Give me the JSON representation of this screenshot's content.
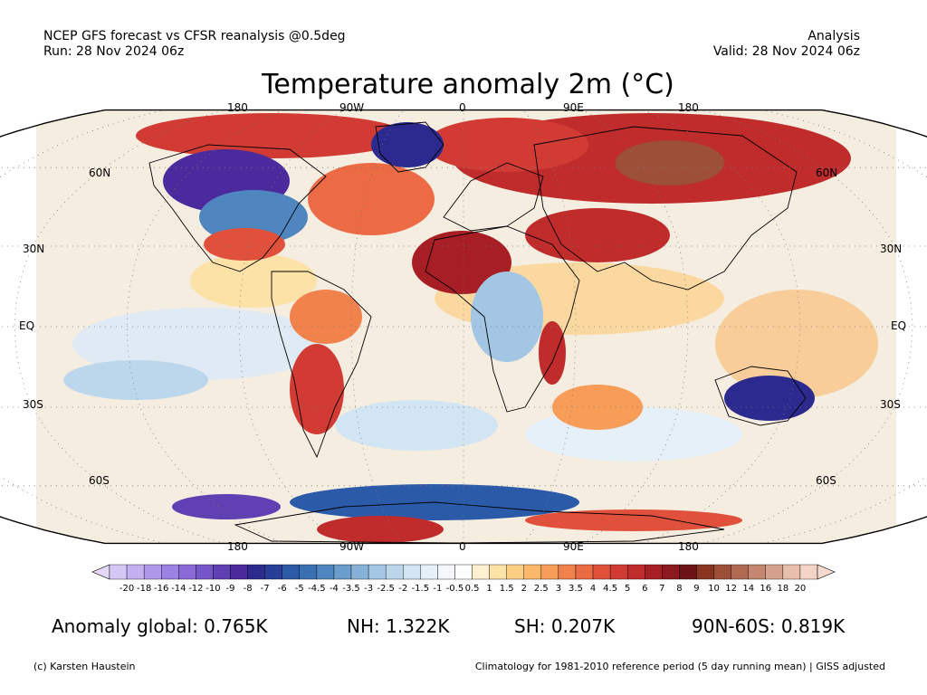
{
  "header": {
    "left_line1": "NCEP GFS forecast vs CFSR reanalysis @0.5deg",
    "left_line2": "Run: 28 Nov 2024 06z",
    "right_line1": "Analysis",
    "right_line2": "Valid: 28 Nov 2024 06z"
  },
  "title": "Temperature anomaly 2m (°C)",
  "map": {
    "projection": "Robinson",
    "lon_labels_top": [
      "180",
      "90W",
      "0",
      "90E",
      "180"
    ],
    "lon_labels_bottom": [
      "180",
      "90W",
      "0",
      "90E",
      "180"
    ],
    "lat_labels_left": [
      "60N",
      "30N",
      "EQ",
      "30S",
      "60S"
    ],
    "lat_labels_right": [
      "60N",
      "30N",
      "EQ",
      "30S",
      "60S"
    ],
    "gridlines": "dotted"
  },
  "colorbar": {
    "labels": [
      "-20",
      "-18",
      "-16",
      "-14",
      "-12",
      "-10",
      "-9",
      "-8",
      "-7",
      "-6",
      "-5",
      "-4.5",
      "-4",
      "-3.5",
      "-3",
      "-2.5",
      "-2",
      "-1.5",
      "-1",
      "-0.5",
      "0.5",
      "1",
      "1.5",
      "2",
      "2.5",
      "3",
      "3.5",
      "4",
      "4.5",
      "5",
      "6",
      "7",
      "8",
      "9",
      "10",
      "12",
      "14",
      "16",
      "18",
      "20"
    ],
    "colors": [
      "#d6c8f5",
      "#c4b0f0",
      "#b099ea",
      "#9c82e2",
      "#8a6ad8",
      "#7654c9",
      "#6140b3",
      "#4b2a9d",
      "#2c2a8f",
      "#273d98",
      "#2a5aa8",
      "#3970b2",
      "#4f86bf",
      "#6a9ccc",
      "#86b2d8",
      "#a2c6e3",
      "#bcd7ec",
      "#d2e5f3",
      "#e5f0f8",
      "#f3f7fb",
      "#ffffff",
      "#fdf1cf",
      "#fde2a8",
      "#fcce85",
      "#fbb76a",
      "#f79d58",
      "#f2824c",
      "#ec6a44",
      "#e0503b",
      "#d23b33",
      "#c02b2c",
      "#a81e25",
      "#8c1a1f",
      "#6e1417",
      "#8a3521",
      "#9e4f37",
      "#b06a52",
      "#c4866f",
      "#d7a28d",
      "#e8bda9",
      "#f3d4c6"
    ],
    "under_color": "#e3d9f7",
    "over_color": "#f6dcd0"
  },
  "stats": {
    "global": "Anomaly global: 0.765K",
    "nh": "NH: 1.322K",
    "sh": "SH: 0.207K",
    "arctic": "90N-60S: 0.819K"
  },
  "footer": {
    "left": "(c) Karsten Haustein",
    "right": "Climatology for 1981-2010 reference period (5 day running mean) | GISS adjusted"
  }
}
